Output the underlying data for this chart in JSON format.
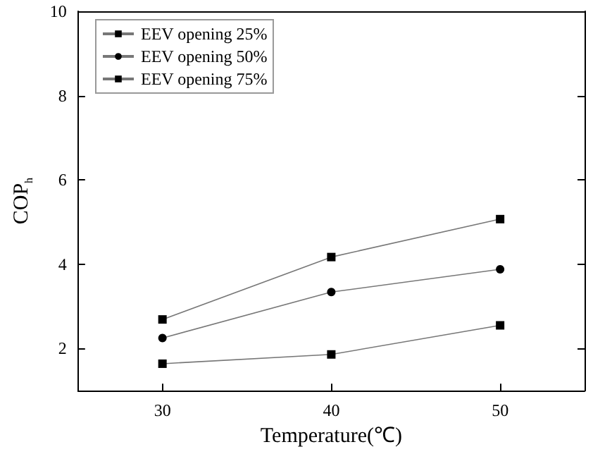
{
  "chart_data": {
    "type": "line",
    "xlabel": "Temperature(℃)",
    "ylabel": "COP$_{h}$",
    "x": [
      30,
      40,
      50
    ],
    "xlim": [
      25,
      55
    ],
    "xticks": [
      30,
      40,
      50
    ],
    "ylim": [
      1,
      10
    ],
    "yticks": [
      2,
      4,
      6,
      8,
      10
    ],
    "legend": "top left",
    "grid": false,
    "line_style": "solid",
    "series": [
      {
        "name": "EEV opening 25%",
        "color": "#000000",
        "marker": "square",
        "values": [
          2.69,
          4.17,
          5.07
        ]
      },
      {
        "name": "EEV opening 50%",
        "color": "#000000",
        "marker": "circle",
        "values": [
          2.25,
          3.34,
          3.88
        ]
      },
      {
        "name": "EEV opening 75%",
        "color": "#000000",
        "marker": "square",
        "values": [
          1.64,
          1.86,
          2.55
        ]
      }
    ]
  }
}
